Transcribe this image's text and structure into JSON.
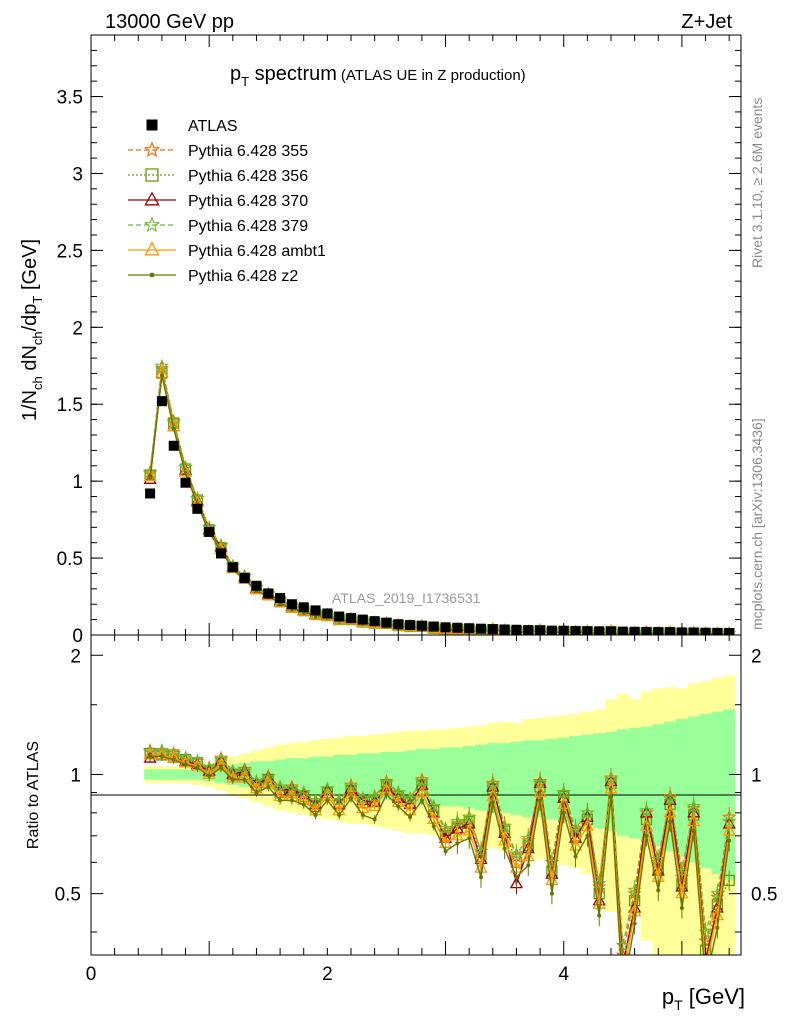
{
  "header": {
    "left": "13000 GeV pp",
    "right": "Z+Jet"
  },
  "side": {
    "rivet": "Rivet 3.1.10, ≥ 2.6M events",
    "mcplots": "mcplots.cern.ch [arXiv:1306.3436]"
  },
  "chart_data": [
    {
      "type": "line",
      "title": "p_T spectrum (ATLAS UE in Z production)",
      "title_main": "p",
      "title_sub": "T",
      "title_rest": " spectrum",
      "title_small": "(ATLAS UE in Z production)",
      "xlabel": "p_T [GeV]",
      "ylabel": "1/N_ch dN_ch/dp_T [GeV]",
      "analysis_label": "ATLAS_2019_I1736531",
      "xlim": [
        0,
        5.5
      ],
      "ylim": [
        0,
        3.9
      ],
      "yticks": [
        "0",
        "0.5",
        "1",
        "1.5",
        "2",
        "2.5",
        "3",
        "3.5"
      ],
      "legend_placement": "top-left",
      "x": [
        0.5,
        0.6,
        0.7,
        0.8,
        0.9,
        1.0,
        1.1,
        1.2,
        1.3,
        1.4,
        1.5,
        1.6,
        1.7,
        1.8,
        1.9,
        2.0,
        2.1,
        2.2,
        2.3,
        2.4,
        2.5,
        2.6,
        2.7,
        2.8,
        2.9,
        3.0,
        3.1,
        3.2,
        3.3,
        3.4,
        3.5,
        3.6,
        3.7,
        3.8,
        3.9,
        4.0,
        4.1,
        4.2,
        4.3,
        4.4,
        4.5,
        4.6,
        4.7,
        4.8,
        4.9,
        5.0,
        5.1,
        5.2,
        5.3,
        5.4
      ],
      "series": [
        {
          "name": "ATLAS",
          "color": "#000000",
          "marker": "square",
          "values": [
            0.92,
            1.52,
            1.23,
            0.99,
            0.82,
            0.67,
            0.53,
            0.44,
            0.37,
            0.32,
            0.27,
            0.24,
            0.2,
            0.18,
            0.16,
            0.14,
            0.12,
            0.11,
            0.1,
            0.09,
            0.08,
            0.07,
            0.065,
            0.06,
            0.055,
            0.05,
            0.047,
            0.044,
            0.041,
            0.038,
            0.036,
            0.034,
            0.032,
            0.03,
            0.028,
            0.027,
            0.026,
            0.025,
            0.024,
            0.023,
            0.022,
            0.021,
            0.02,
            0.019,
            0.018,
            0.017,
            0.016,
            0.015,
            0.014,
            0.013
          ]
        },
        {
          "name": "Pythia 6.428 355",
          "color": "#ff6600",
          "marker": "star",
          "dash": "5,3"
        },
        {
          "name": "Pythia 6.428 356",
          "color": "#669900",
          "marker": "square-open",
          "dash": "2,2"
        },
        {
          "name": "Pythia 6.428 370",
          "color": "#990000",
          "marker": "triangle-open",
          "dash": ""
        },
        {
          "name": "Pythia 6.428 379",
          "color": "#66bb33",
          "marker": "star",
          "dash": "5,3"
        },
        {
          "name": "Pythia 6.428 ambt1",
          "color": "#ff9900",
          "marker": "triangle-open",
          "dash": ""
        },
        {
          "name": "Pythia 6.428 z2",
          "color": "#667700",
          "marker": "dot",
          "dash": ""
        }
      ]
    },
    {
      "type": "line",
      "ylabel": "Ratio to ATLAS",
      "xlabel": "p_T [GeV]",
      "xlim": [
        0,
        5.5
      ],
      "ylim": [
        0.35,
        2.25
      ],
      "yticks": [
        "0.5",
        "1",
        "2"
      ],
      "xticks": [
        "0",
        "2",
        "4"
      ],
      "band_colors": {
        "inner": "#99ff99",
        "outer": "#ffff99"
      },
      "x": [
        0.5,
        0.6,
        0.7,
        0.8,
        0.9,
        1.0,
        1.1,
        1.2,
        1.3,
        1.4,
        1.5,
        1.6,
        1.7,
        1.8,
        1.9,
        2.0,
        2.1,
        2.2,
        2.3,
        2.4,
        2.5,
        2.6,
        2.7,
        2.8,
        2.9,
        3.0,
        3.1,
        3.2,
        3.3,
        3.4,
        3.5,
        3.6,
        3.7,
        3.8,
        3.9,
        4.0,
        4.1,
        4.2,
        4.3,
        4.4,
        4.5,
        4.6,
        4.7,
        4.8,
        4.9,
        5.0,
        5.1,
        5.2,
        5.3,
        5.4
      ],
      "inner_band": [
        0.03,
        0.03,
        0.03,
        0.03,
        0.03,
        0.04,
        0.05,
        0.06,
        0.07,
        0.08,
        0.08,
        0.09,
        0.1,
        0.1,
        0.11,
        0.11,
        0.12,
        0.12,
        0.13,
        0.13,
        0.14,
        0.14,
        0.15,
        0.16,
        0.16,
        0.17,
        0.17,
        0.18,
        0.19,
        0.2,
        0.2,
        0.21,
        0.22,
        0.22,
        0.23,
        0.24,
        0.25,
        0.26,
        0.27,
        0.28,
        0.3,
        0.31,
        0.32,
        0.34,
        0.36,
        0.38,
        0.4,
        0.42,
        0.44,
        0.46
      ],
      "outer_band": [
        0.05,
        0.05,
        0.05,
        0.05,
        0.06,
        0.07,
        0.09,
        0.11,
        0.13,
        0.15,
        0.17,
        0.19,
        0.2,
        0.21,
        0.22,
        0.23,
        0.24,
        0.25,
        0.25,
        0.26,
        0.27,
        0.28,
        0.29,
        0.29,
        0.3,
        0.3,
        0.31,
        0.32,
        0.33,
        0.35,
        0.36,
        0.35,
        0.38,
        0.39,
        0.4,
        0.41,
        0.42,
        0.44,
        0.46,
        0.55,
        0.6,
        0.55,
        0.62,
        0.65,
        0.66,
        0.65,
        0.7,
        0.72,
        0.75,
        0.78
      ],
      "series": [
        {
          "name": "Pythia 6.428 355",
          "values": [
            1.15,
            1.14,
            1.13,
            1.1,
            1.08,
            1.04,
            1.1,
            1.02,
            1.03,
            0.96,
            0.99,
            0.93,
            0.93,
            0.9,
            0.85,
            0.92,
            0.86,
            0.94,
            0.87,
            0.88,
            0.96,
            0.9,
            0.87,
            0.97,
            0.83,
            0.72,
            0.75,
            0.78,
            0.64,
            0.95,
            0.74,
            0.62,
            0.68,
            0.96,
            0.6,
            0.9,
            0.72,
            0.8,
            0.52,
            0.98,
            0.35,
            0.5,
            0.8,
            0.6,
            0.88,
            0.55,
            0.82,
            0.38,
            0.49,
            0.78
          ]
        },
        {
          "name": "Pythia 6.428 356",
          "values": [
            1.13,
            1.12,
            1.12,
            1.09,
            1.07,
            1.02,
            1.07,
            1.0,
            1.0,
            0.94,
            0.97,
            0.9,
            0.9,
            0.88,
            0.83,
            0.9,
            0.84,
            0.91,
            0.85,
            0.86,
            0.94,
            0.88,
            0.85,
            0.94,
            0.81,
            0.7,
            0.73,
            0.76,
            0.62,
            0.92,
            0.72,
            0.6,
            0.66,
            0.93,
            0.57,
            0.88,
            0.7,
            0.77,
            0.5,
            0.95,
            0.32,
            0.48,
            0.77,
            0.58,
            0.84,
            0.53,
            0.79,
            0.36,
            0.47,
            0.54
          ]
        },
        {
          "name": "Pythia 6.428 370",
          "values": [
            1.1,
            1.12,
            1.1,
            1.08,
            1.06,
            1.02,
            1.08,
            1.0,
            1.02,
            0.95,
            0.98,
            0.91,
            0.92,
            0.89,
            0.84,
            0.91,
            0.84,
            0.92,
            0.86,
            0.85,
            0.93,
            0.87,
            0.84,
            0.94,
            0.8,
            0.69,
            0.73,
            0.75,
            0.61,
            0.93,
            0.71,
            0.53,
            0.65,
            0.95,
            0.56,
            0.87,
            0.69,
            0.78,
            0.48,
            0.96,
            0.33,
            0.46,
            0.8,
            0.57,
            0.86,
            0.52,
            0.8,
            0.34,
            0.46,
            0.75
          ]
        },
        {
          "name": "Pythia 6.428 379",
          "values": [
            1.14,
            1.15,
            1.12,
            1.1,
            1.08,
            1.04,
            1.09,
            1.02,
            1.02,
            0.96,
            0.98,
            0.93,
            0.92,
            0.9,
            0.86,
            0.92,
            0.86,
            0.93,
            0.87,
            0.88,
            0.95,
            0.9,
            0.87,
            0.96,
            0.83,
            0.73,
            0.76,
            0.78,
            0.64,
            0.94,
            0.74,
            0.63,
            0.69,
            0.95,
            0.6,
            0.9,
            0.73,
            0.8,
            0.53,
            0.97,
            0.37,
            0.51,
            0.81,
            0.61,
            0.87,
            0.57,
            0.83,
            0.4,
            0.5,
            0.76
          ]
        },
        {
          "name": "Pythia 6.428 ambt1",
          "values": [
            1.12,
            1.12,
            1.1,
            1.07,
            1.05,
            1.0,
            1.05,
            0.98,
            0.98,
            0.92,
            0.95,
            0.88,
            0.88,
            0.86,
            0.81,
            0.88,
            0.81,
            0.89,
            0.82,
            0.83,
            0.91,
            0.85,
            0.81,
            0.9,
            0.77,
            0.67,
            0.7,
            0.72,
            0.58,
            0.88,
            0.68,
            0.58,
            0.62,
            0.9,
            0.54,
            0.84,
            0.66,
            0.74,
            0.47,
            0.92,
            0.3,
            0.45,
            0.74,
            0.55,
            0.8,
            0.5,
            0.76,
            0.33,
            0.44,
            0.72
          ]
        },
        {
          "name": "Pythia 6.428 z2",
          "values": [
            1.11,
            1.11,
            1.09,
            1.06,
            1.04,
            0.99,
            1.04,
            0.97,
            0.97,
            0.9,
            0.93,
            0.86,
            0.86,
            0.84,
            0.79,
            0.86,
            0.79,
            0.87,
            0.79,
            0.77,
            0.89,
            0.83,
            0.78,
            0.86,
            0.74,
            0.64,
            0.67,
            0.69,
            0.55,
            0.85,
            0.65,
            0.55,
            0.59,
            0.86,
            0.5,
            0.8,
            0.62,
            0.7,
            0.44,
            0.88,
            0.28,
            0.42,
            0.7,
            0.51,
            0.76,
            0.46,
            0.72,
            0.3,
            0.41,
            0.68
          ]
        }
      ]
    }
  ]
}
